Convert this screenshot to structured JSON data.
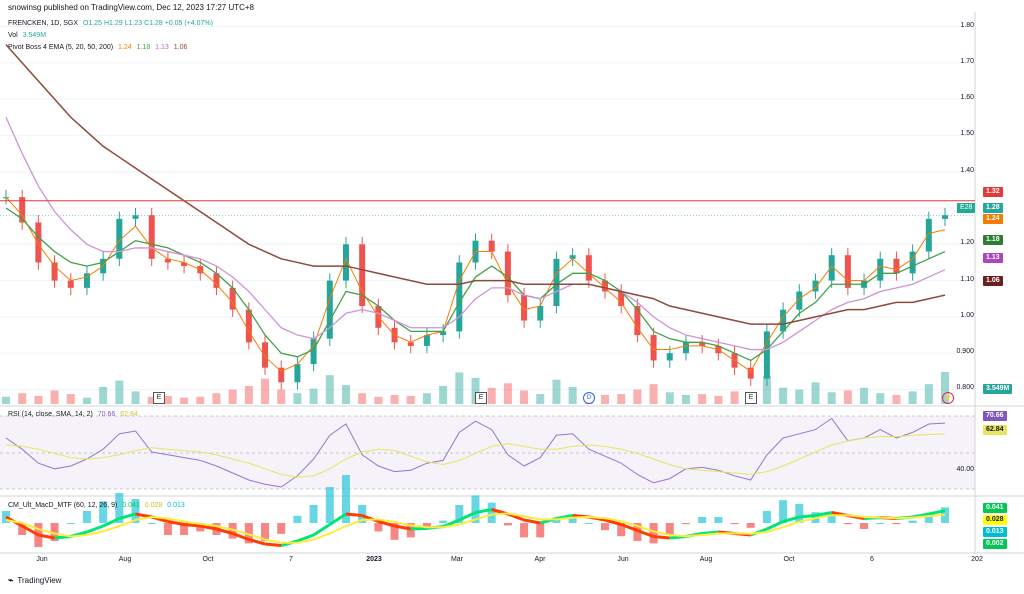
{
  "header_text": "snowinsg published on TradingView.com, Dec 12, 2023 17:27 UTC+8",
  "main_legend": {
    "symbol": "FRENCKEN, 1D, SGX",
    "ohlc": "O1.25 H1.29 L1.23 C1.28 +0.05 (+4.07%)",
    "vol_label": "Vol",
    "vol_value": "3.549M",
    "ema_label": "Pivot Boss 4 EMA (5, 20, 50, 200)",
    "ema_values": [
      "1.24",
      "1.18",
      "1.13",
      "1.06"
    ]
  },
  "rsi_legend": {
    "label": "RSI (14, close, SMA, 14, 2)",
    "v1": "70.66",
    "v2": "62.84"
  },
  "macd_legend": {
    "label": "CM_Ult_MacD_MTF (60, 12, 26, 9)",
    "v1": "0.041",
    "v2": "0.028",
    "v3": "0.013"
  },
  "price_ticks": [
    "1.80",
    "1.70",
    "1.60",
    "1.50",
    "1.40",
    "1.30",
    "1.20",
    "1.10",
    "1.00",
    "0.900",
    "0.800"
  ],
  "rsi_ticks": [
    "40.00"
  ],
  "right_tags": {
    "resistance": "1.32",
    "close": "1.28",
    "ema5": "1.24",
    "ema20": "1.18",
    "ema50": "1.13",
    "ema200": "1.06",
    "volume": "3.549M",
    "rsi": "70.66",
    "rsi_ma": "62.84",
    "macd1": "0.041",
    "macd2": "0.028",
    "macd3": "0.013",
    "macd4": "0.002"
  },
  "earnings_badge": "E28",
  "earnings_marker": "E",
  "dividend_marker": "D",
  "x_ticks": [
    "Jun",
    "Aug",
    "Oct",
    "7",
    "2023",
    "Mar",
    "Apr",
    "Jun",
    "Aug",
    "Oct",
    "6",
    "202"
  ],
  "footer": "TradingView",
  "colors": {
    "up": "#26a69a",
    "down": "#ef5350",
    "ema5": "#f57c00",
    "ema20": "#43a047",
    "ema50": "#ce93d8",
    "ema200": "#8d4a3a",
    "resistance": "#e53935",
    "rsi": "#9575cd",
    "rsi_ma": "#e6e65c"
  },
  "chart_data": {
    "type": "line",
    "title": "FRENCKEN, 1D, SGX",
    "price_axis": {
      "min": 0.76,
      "max": 1.84
    },
    "resistance_level": 1.32,
    "series": [
      {
        "name": "close",
        "values": [
          1.33,
          1.26,
          1.15,
          1.1,
          1.08,
          1.12,
          1.16,
          1.27,
          1.28,
          1.16,
          1.15,
          1.14,
          1.12,
          1.08,
          1.02,
          0.93,
          0.86,
          0.82,
          0.87,
          0.94,
          1.1,
          1.2,
          1.03,
          0.97,
          0.93,
          0.92,
          0.95,
          0.96,
          1.15,
          1.21,
          1.18,
          1.06,
          0.99,
          1.03,
          1.16,
          1.17,
          1.1,
          1.07,
          1.03,
          0.95,
          0.88,
          0.9,
          0.93,
          0.92,
          0.9,
          0.86,
          0.83,
          0.96,
          1.02,
          1.07,
          1.1,
          1.17,
          1.08,
          1.1,
          1.16,
          1.12,
          1.18,
          1.27,
          1.28
        ]
      },
      {
        "name": "EMA 5",
        "values": [
          1.33,
          1.28,
          1.2,
          1.14,
          1.1,
          1.11,
          1.14,
          1.21,
          1.25,
          1.19,
          1.16,
          1.15,
          1.13,
          1.09,
          1.04,
          0.96,
          0.89,
          0.85,
          0.87,
          0.92,
          1.05,
          1.16,
          1.07,
          1.0,
          0.95,
          0.93,
          0.95,
          0.96,
          1.1,
          1.18,
          1.18,
          1.09,
          1.02,
          1.03,
          1.12,
          1.16,
          1.12,
          1.08,
          1.04,
          0.97,
          0.91,
          0.91,
          0.92,
          0.92,
          0.91,
          0.88,
          0.85,
          0.93,
          1.0,
          1.05,
          1.08,
          1.14,
          1.1,
          1.1,
          1.14,
          1.13,
          1.16,
          1.23,
          1.24
        ]
      },
      {
        "name": "EMA 20",
        "values": [
          1.3,
          1.27,
          1.22,
          1.18,
          1.15,
          1.14,
          1.15,
          1.18,
          1.21,
          1.2,
          1.19,
          1.17,
          1.15,
          1.12,
          1.08,
          1.02,
          0.95,
          0.9,
          0.89,
          0.91,
          0.99,
          1.07,
          1.06,
          1.03,
          0.99,
          0.96,
          0.96,
          0.96,
          1.04,
          1.11,
          1.14,
          1.11,
          1.06,
          1.05,
          1.09,
          1.12,
          1.12,
          1.1,
          1.07,
          1.02,
          0.96,
          0.94,
          0.93,
          0.93,
          0.92,
          0.9,
          0.88,
          0.91,
          0.96,
          1.01,
          1.04,
          1.09,
          1.09,
          1.09,
          1.12,
          1.12,
          1.14,
          1.16,
          1.18
        ]
      },
      {
        "name": "EMA 50",
        "values": [
          1.55,
          1.45,
          1.36,
          1.29,
          1.24,
          1.2,
          1.18,
          1.18,
          1.19,
          1.19,
          1.18,
          1.17,
          1.16,
          1.14,
          1.11,
          1.07,
          1.02,
          0.97,
          0.95,
          0.94,
          0.97,
          1.01,
          1.02,
          1.01,
          0.99,
          0.97,
          0.97,
          0.97,
          1.0,
          1.05,
          1.08,
          1.08,
          1.06,
          1.05,
          1.07,
          1.09,
          1.09,
          1.08,
          1.07,
          1.04,
          1.0,
          0.97,
          0.95,
          0.94,
          0.93,
          0.92,
          0.91,
          0.91,
          0.93,
          0.96,
          0.99,
          1.02,
          1.04,
          1.05,
          1.07,
          1.08,
          1.09,
          1.11,
          1.13
        ]
      },
      {
        "name": "EMA 200",
        "values": [
          1.75,
          1.7,
          1.65,
          1.6,
          1.55,
          1.51,
          1.47,
          1.44,
          1.41,
          1.38,
          1.35,
          1.32,
          1.29,
          1.26,
          1.23,
          1.2,
          1.18,
          1.16,
          1.15,
          1.14,
          1.14,
          1.14,
          1.13,
          1.12,
          1.11,
          1.1,
          1.09,
          1.09,
          1.09,
          1.1,
          1.1,
          1.1,
          1.09,
          1.09,
          1.09,
          1.09,
          1.09,
          1.08,
          1.07,
          1.06,
          1.05,
          1.03,
          1.02,
          1.01,
          1.0,
          0.99,
          0.98,
          0.98,
          0.98,
          0.99,
          1.0,
          1.01,
          1.02,
          1.02,
          1.03,
          1.04,
          1.04,
          1.05,
          1.06
        ]
      }
    ],
    "volume": [
      0.8,
      1.2,
      0.9,
      1.5,
      1.1,
      0.7,
      1.9,
      2.6,
      1.4,
      0.8,
      0.9,
      0.7,
      0.8,
      1.2,
      1.6,
      2.0,
      2.8,
      1.6,
      1.2,
      1.7,
      3.2,
      2.1,
      1.2,
      0.8,
      1.0,
      0.9,
      1.2,
      2.0,
      3.5,
      2.9,
      1.8,
      2.3,
      1.5,
      1.1,
      2.7,
      1.9,
      1.2,
      1.0,
      1.1,
      1.6,
      2.2,
      1.3,
      1.0,
      1.1,
      0.9,
      1.4,
      1.2,
      3.1,
      1.8,
      1.6,
      2.4,
      1.3,
      1.5,
      1.8,
      1.2,
      1.0,
      1.4,
      2.2,
      3.549
    ],
    "rsi": [
      60,
      52,
      42,
      38,
      40,
      45,
      52,
      63,
      65,
      50,
      48,
      46,
      44,
      40,
      35,
      30,
      27,
      25,
      33,
      45,
      62,
      70,
      48,
      40,
      36,
      37,
      42,
      44,
      64,
      72,
      66,
      48,
      40,
      46,
      62,
      63,
      52,
      47,
      42,
      34,
      28,
      31,
      38,
      39,
      37,
      33,
      30,
      48,
      60,
      63,
      66,
      74,
      58,
      60,
      66,
      60,
      64,
      70,
      70.66
    ],
    "rsi_ma": [
      55,
      54,
      52,
      49,
      46,
      45,
      46,
      48,
      51,
      53,
      52,
      51,
      50,
      48,
      45,
      42,
      38,
      34,
      32,
      33,
      38,
      45,
      50,
      52,
      51,
      47,
      43,
      41,
      44,
      49,
      54,
      56,
      54,
      52,
      52,
      54,
      55,
      54,
      52,
      49,
      45,
      41,
      38,
      37,
      36,
      35,
      34,
      36,
      40,
      45,
      50,
      55,
      58,
      60,
      61,
      61,
      62,
      62.5,
      62.84
    ],
    "rsi_axis": {
      "min": 20,
      "max": 80
    },
    "macd": [
      0.02,
      -0.01,
      -0.04,
      -0.05,
      -0.045,
      -0.03,
      -0.01,
      0.015,
      0.03,
      0.02,
      0.005,
      -0.005,
      -0.01,
      -0.02,
      -0.035,
      -0.055,
      -0.07,
      -0.075,
      -0.06,
      -0.04,
      -0.005,
      0.03,
      0.025,
      0.005,
      -0.01,
      -0.02,
      -0.018,
      -0.012,
      0.01,
      0.035,
      0.045,
      0.03,
      0.01,
      0.0,
      0.015,
      0.025,
      0.02,
      0.01,
      -0.005,
      -0.025,
      -0.045,
      -0.05,
      -0.045,
      -0.035,
      -0.03,
      -0.035,
      -0.04,
      -0.02,
      0.005,
      0.02,
      0.025,
      0.035,
      0.025,
      0.015,
      0.018,
      0.015,
      0.02,
      0.03,
      0.041
    ],
    "macd_signal": [
      0.01,
      0.0,
      -0.02,
      -0.035,
      -0.045,
      -0.04,
      -0.028,
      -0.01,
      0.01,
      0.02,
      0.015,
      0.005,
      -0.003,
      -0.01,
      -0.022,
      -0.038,
      -0.055,
      -0.066,
      -0.066,
      -0.055,
      -0.035,
      -0.01,
      0.01,
      0.012,
      0.004,
      -0.008,
      -0.014,
      -0.014,
      -0.005,
      0.012,
      0.028,
      0.032,
      0.022,
      0.012,
      0.012,
      0.018,
      0.02,
      0.016,
      0.006,
      -0.01,
      -0.028,
      -0.04,
      -0.044,
      -0.04,
      -0.035,
      -0.034,
      -0.036,
      -0.03,
      -0.014,
      0.004,
      0.016,
      0.026,
      0.026,
      0.02,
      0.018,
      0.016,
      0.018,
      0.023,
      0.028
    ]
  }
}
